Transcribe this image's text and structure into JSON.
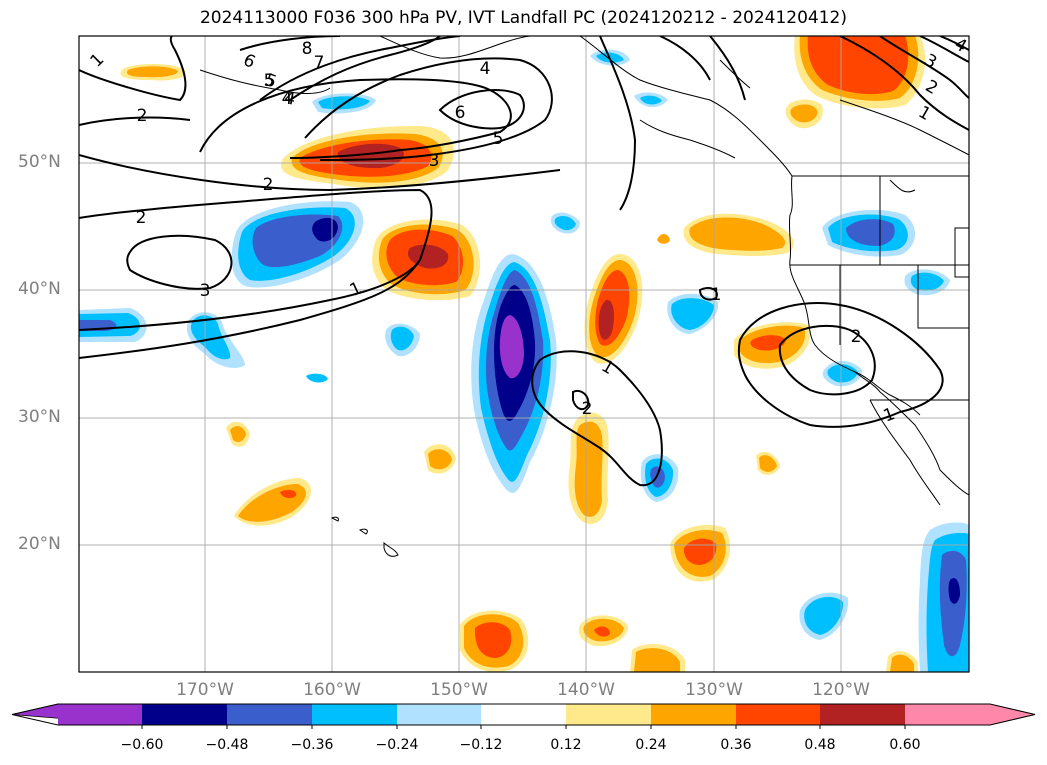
{
  "title": "2024113000 F036 300 hPa PV, IVT Landfall PC (2024120212 - 2024120412)",
  "colors": {
    "pos_012": "#ffe98a",
    "pos_024": "#ffa500",
    "pos_036": "#ff4500",
    "pos_048": "#b22222",
    "pos_060": "#ff88aa",
    "neg_012": "#b0e2ff",
    "neg_024": "#00bfff",
    "neg_036": "#3a5fcd",
    "neg_048": "#00008b",
    "neg_060": "#9932cc",
    "contour": "#000000",
    "grid": "#aaaaaa",
    "axis_text": "#7f7f7f"
  },
  "lat_labels": [
    "50°N",
    "40°N",
    "30°N",
    "20°N"
  ],
  "lon_labels": [
    "170°W",
    "160°W",
    "150°W",
    "140°W",
    "130°W",
    "120°W"
  ],
  "colorbar": {
    "ticks": [
      "−0.60",
      "−0.48",
      "−0.36",
      "−0.24",
      "−0.12",
      "0.12",
      "0.24",
      "0.36",
      "0.48",
      "0.60"
    ]
  },
  "contour_labels": [
    "1",
    "2",
    "3",
    "4",
    "5",
    "6",
    "7",
    "8",
    "2",
    "1",
    "2",
    "3",
    "2",
    "1",
    "3",
    "4",
    "5",
    "6",
    "4",
    "5",
    "1",
    "1",
    "2",
    "1",
    "2",
    "1",
    "2",
    "3",
    "4"
  ]
}
